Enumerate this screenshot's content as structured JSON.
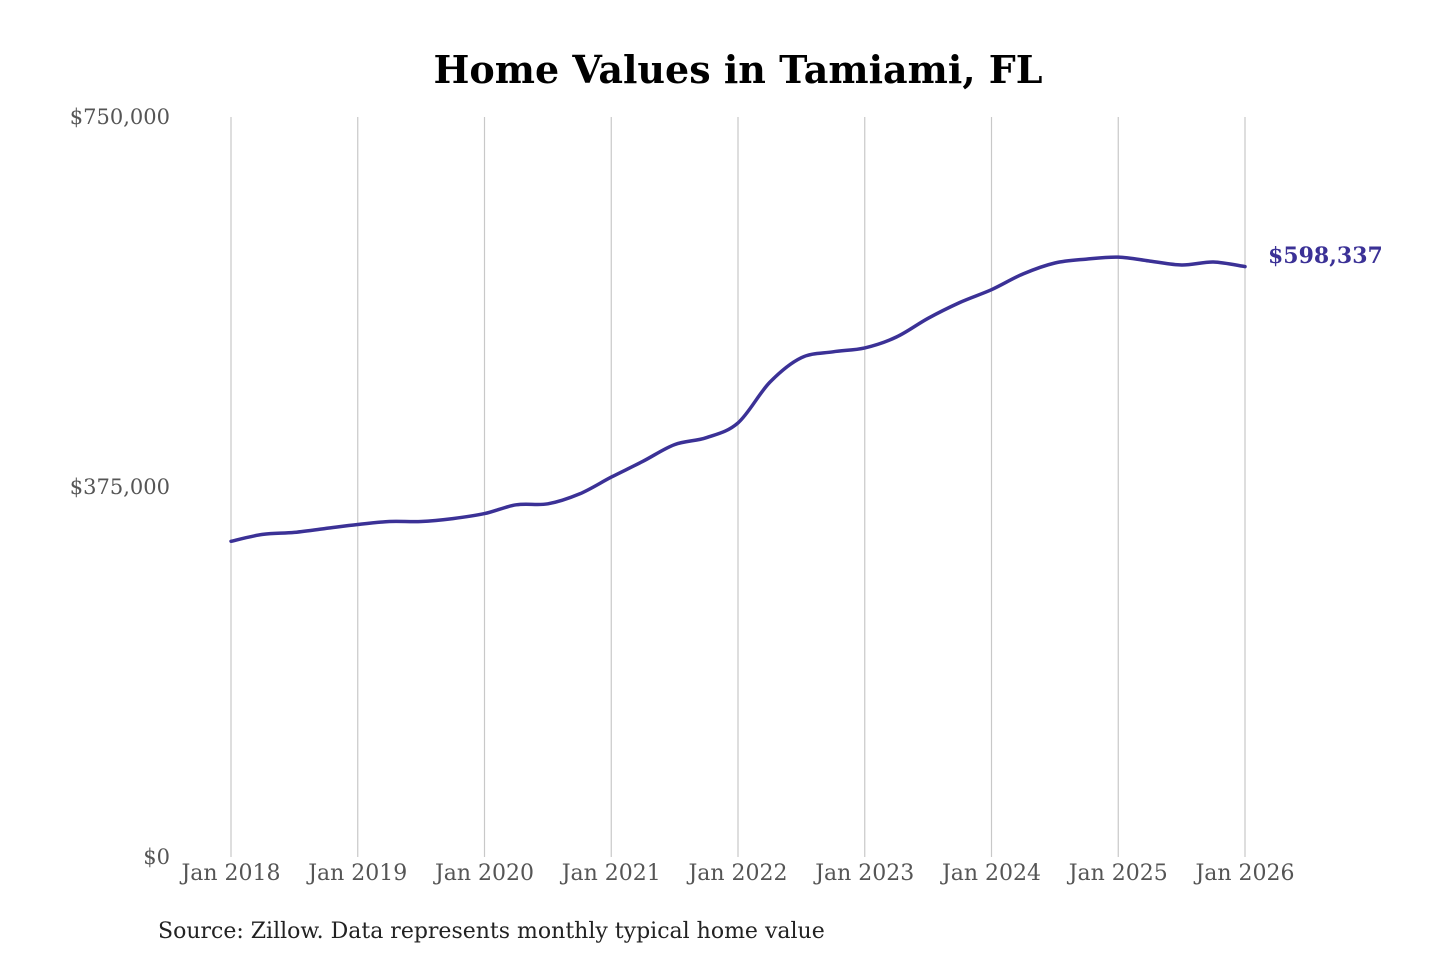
{
  "chart_data": {
    "type": "line",
    "title": "Home Values in Tamiami, FL",
    "source": "Source: Zillow. Data represents monthly typical home value",
    "ylim": [
      0,
      750000
    ],
    "y_ticks": [
      "$750,000",
      "$375,000",
      "$0"
    ],
    "y_tick_values": [
      750000,
      375000,
      0
    ],
    "x_ticks": [
      "Jan 2018",
      "Jan 2019",
      "Jan 2020",
      "Jan 2021",
      "Jan 2022",
      "Jan 2023",
      "Jan 2024",
      "Jan 2025",
      "Jan 2026"
    ],
    "x_range": [
      "2018-01",
      "2026-01"
    ],
    "grid": "vertical",
    "line_color": "#3b3196",
    "end_label": "$598,337",
    "series": [
      {
        "x": [
          "2018-01",
          "2018-04",
          "2018-07",
          "2018-10",
          "2019-01",
          "2019-04",
          "2019-07",
          "2019-10",
          "2020-01",
          "2020-04",
          "2020-07",
          "2020-10",
          "2021-01",
          "2021-04",
          "2021-07",
          "2021-10",
          "2022-01",
          "2022-04",
          "2022-07",
          "2022-10",
          "2023-01",
          "2023-04",
          "2023-07",
          "2023-10",
          "2024-01",
          "2024-04",
          "2024-07",
          "2024-10",
          "2025-01",
          "2025-04",
          "2025-07",
          "2025-10",
          "2026-01"
        ],
        "values": [
          320000,
          327000,
          329000,
          333000,
          337000,
          340000,
          340000,
          343000,
          348000,
          357000,
          358000,
          368000,
          385000,
          401000,
          418000,
          425000,
          440000,
          481000,
          506000,
          512000,
          516000,
          527000,
          546000,
          562000,
          575000,
          591000,
          602000,
          606000,
          608000,
          604000,
          600000,
          603000,
          598337
        ]
      }
    ]
  }
}
